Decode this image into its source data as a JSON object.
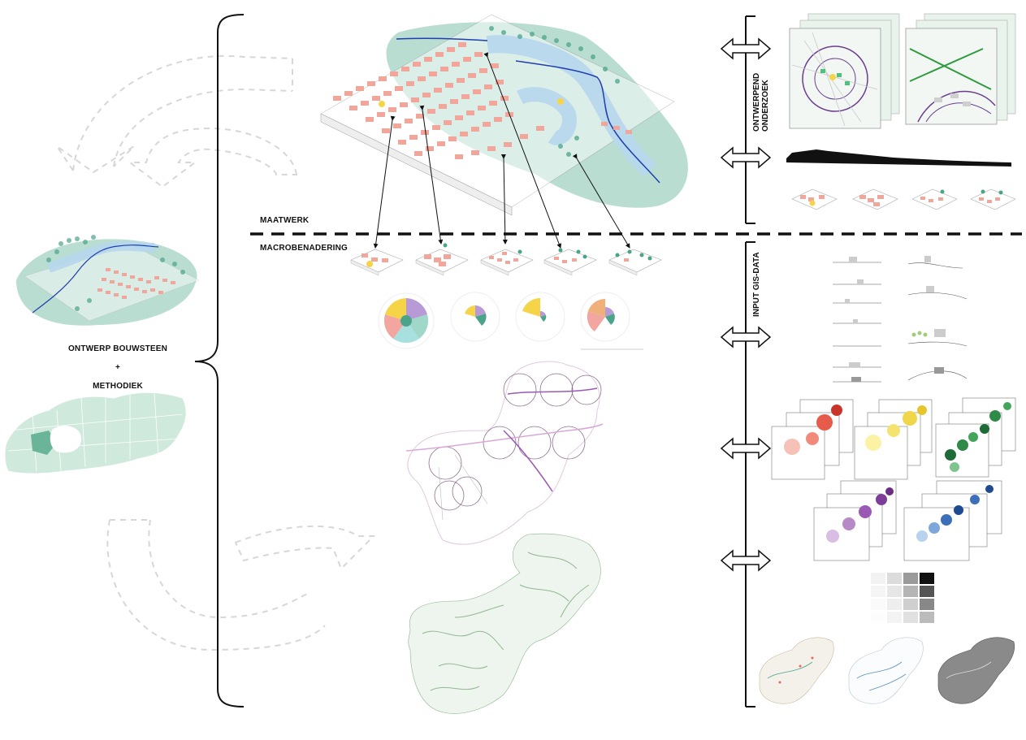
{
  "labels": {
    "ontwerp_bouwsteen": "ONTWERP BOUWSTEEN",
    "plus": "+",
    "methodiek": "METHODIEK",
    "maatwerk": "MAATWERK",
    "macrobenadering": "MACROBENADERING",
    "ontwerpend_onderzoek_line1": "ONTWERPEND",
    "ontwerpend_onderzoek_line2": "ONDERZOEK",
    "input_gis_data": "INPUT GIS-DATA"
  },
  "colors": {
    "building": "#f0a69a",
    "water": "#b7d7ec",
    "river_line": "#1f3fb0",
    "green_zone": "#a9d4c6",
    "flanders": "#cfe9dc",
    "dashed_gray": "#d9d9d9",
    "purple": "#9b59b6",
    "yellow": "#f5d547",
    "teal": "#4aa48a",
    "salmon": "#f3a6a0"
  },
  "icons": {
    "double_arrow": "double-arrow-icon",
    "curved_arrow": "curved-arrow-icon",
    "brace": "curly-brace-icon"
  }
}
